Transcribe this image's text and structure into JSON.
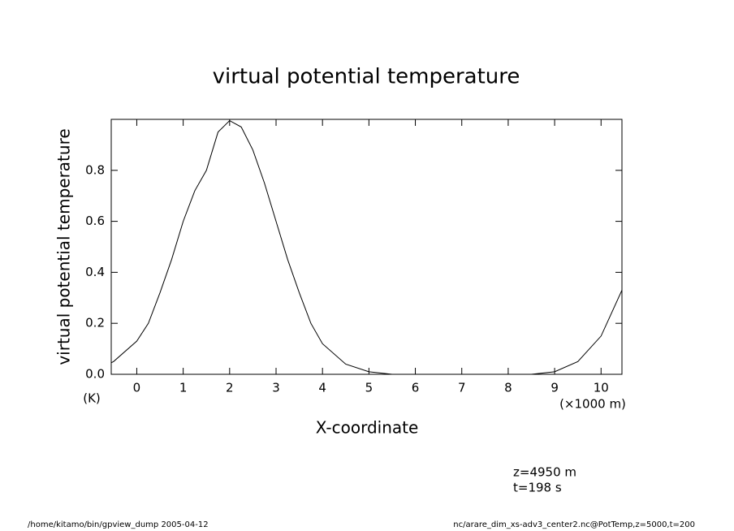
{
  "chart_data": {
    "type": "line",
    "title": "virtual potential temperature",
    "y_label": "virtual potential temperature",
    "y_unit": "(K)",
    "x_label": "X-coordinate",
    "x_unit": "(×1000 m)",
    "annotations": [
      "z=4950 m",
      "t=198 s"
    ],
    "footer_left": "/home/kitamo/bin/gpview_dump  2005-04-12",
    "footer_right": "nc/arare_dim_xs-adv3_center2.nc@PotTemp,z=5000,t=200",
    "x": [
      -0.55,
      -0.5,
      0,
      0.25,
      0.5,
      0.75,
      1,
      1.25,
      1.5,
      1.75,
      2,
      2.25,
      2.5,
      2.75,
      3,
      3.25,
      3.5,
      3.75,
      4,
      4.5,
      5,
      5.5,
      6,
      7,
      8,
      8.5,
      9,
      9.5,
      10,
      10.45
    ],
    "series": [
      {
        "color": "#000000",
        "values": [
          0.045,
          0.05,
          0.13,
          0.2,
          0.32,
          0.45,
          0.6,
          0.72,
          0.8,
          0.95,
          0.995,
          0.97,
          0.88,
          0.75,
          0.6,
          0.45,
          0.32,
          0.2,
          0.12,
          0.04,
          0.01,
          0.0,
          0.0,
          0.0,
          0.0,
          0.0,
          0.01,
          0.05,
          0.15,
          0.33
        ]
      }
    ],
    "xlim": [
      -0.55,
      10.45
    ],
    "ylim": [
      0,
      1.0
    ],
    "xticks": [
      0,
      1,
      2,
      3,
      4,
      5,
      6,
      7,
      8,
      9,
      10
    ],
    "yticks": [
      {
        "value": 0,
        "label": "0.0"
      },
      0.2,
      0.4,
      0.6,
      0.8
    ]
  }
}
